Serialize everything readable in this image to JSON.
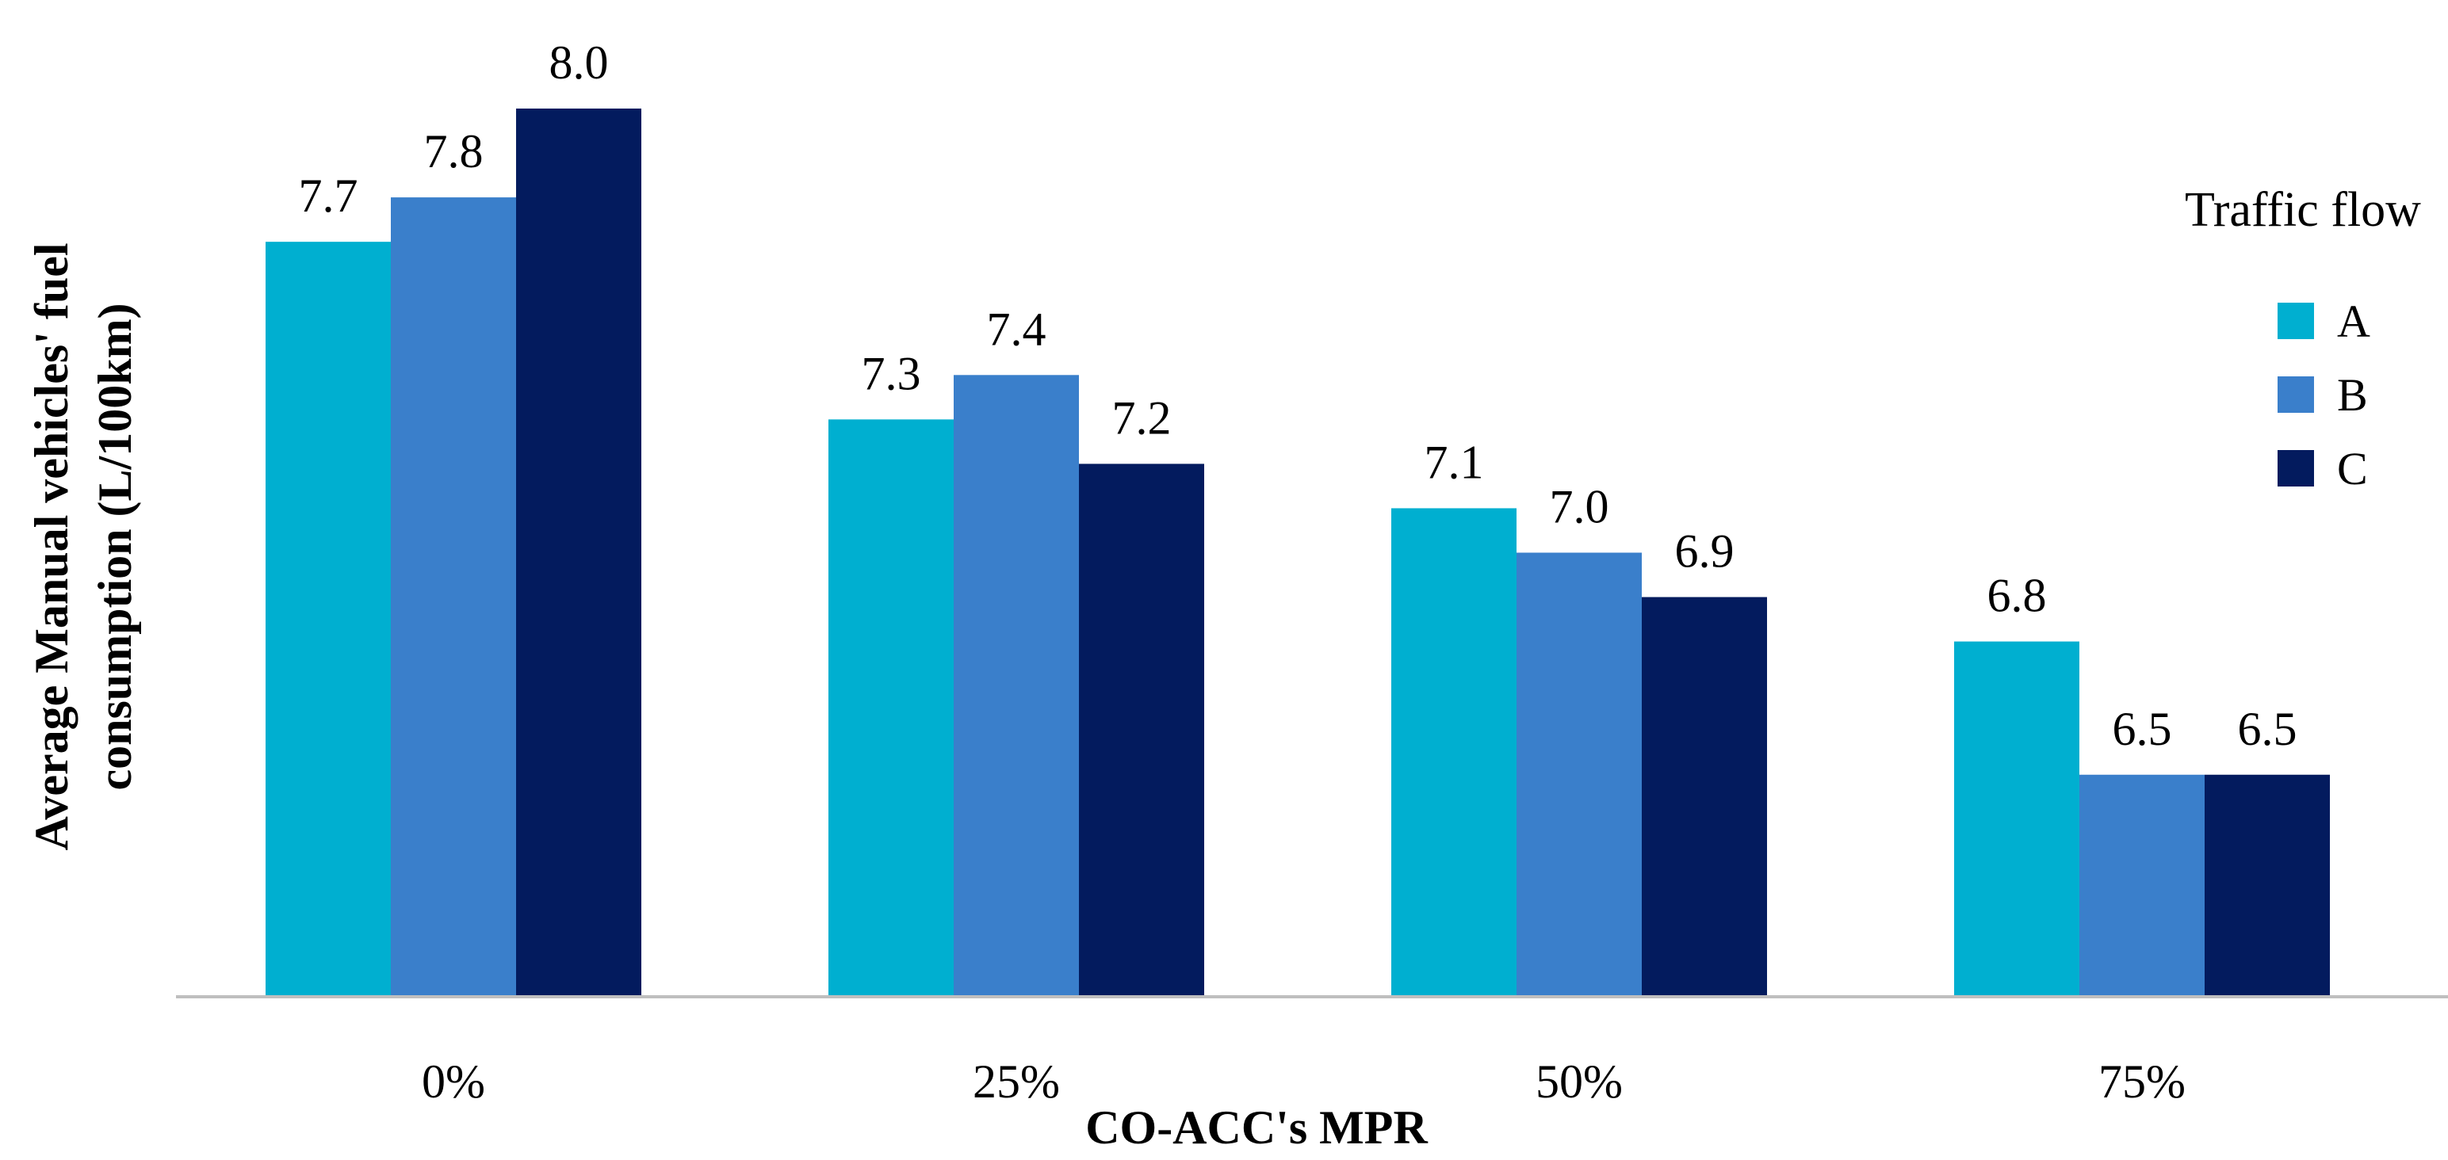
{
  "chart_data": {
    "type": "bar",
    "title": "",
    "xlabel": "CO-ACC's MPR",
    "ylabel": "Average Manual vehicles' fuel consumption (L/100km)",
    "categories": [
      "0%",
      "25%",
      "50%",
      "75%"
    ],
    "series": [
      {
        "name": "A",
        "values": [
          7.7,
          7.3,
          7.1,
          6.8
        ],
        "labels": [
          "7.7",
          "7.3",
          "7.1",
          "6.8"
        ]
      },
      {
        "name": "B",
        "values": [
          7.8,
          7.4,
          7.0,
          6.5
        ],
        "labels": [
          "7.8",
          "7.4",
          "7.0",
          "6.5"
        ]
      },
      {
        "name": "C",
        "values": [
          8.0,
          7.2,
          6.9,
          6.5
        ],
        "labels": [
          "8.0",
          "7.2",
          "6.9",
          "6.5"
        ]
      }
    ],
    "ylim": [
      6.0,
      8.0
    ],
    "grid": false,
    "y_axis_visible": false,
    "legend": {
      "title": "Traffic flow",
      "placement": "right"
    },
    "colors": {
      "A": "#00AFD0",
      "B": "#3A7FCB",
      "C": "#031B5E",
      "axis": "#BFBFBF"
    }
  }
}
